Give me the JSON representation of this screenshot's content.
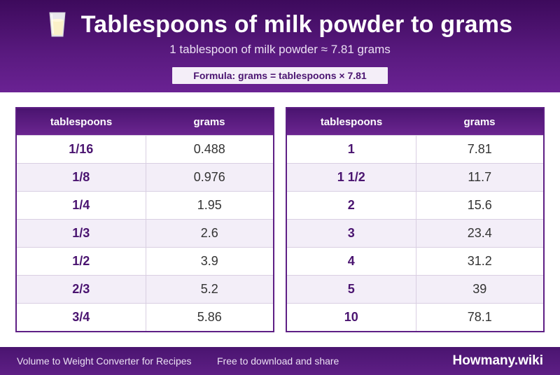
{
  "header": {
    "icon": "milk-glass-icon",
    "title": "Tablespoons of milk powder to grams",
    "subtitle": "1 tablespoon of milk powder ≈ 7.81 grams",
    "formula": "Formula: grams = tablespoons × 7.81"
  },
  "tables": {
    "columns": [
      "tablespoons",
      "grams"
    ],
    "left": [
      {
        "tbsp": "1/16",
        "grams": "0.488"
      },
      {
        "tbsp": "1/8",
        "grams": "0.976"
      },
      {
        "tbsp": "1/4",
        "grams": "1.95"
      },
      {
        "tbsp": "1/3",
        "grams": "2.6"
      },
      {
        "tbsp": "1/2",
        "grams": "3.9"
      },
      {
        "tbsp": "2/3",
        "grams": "5.2"
      },
      {
        "tbsp": "3/4",
        "grams": "5.86"
      }
    ],
    "right": [
      {
        "tbsp": "1",
        "grams": "7.81"
      },
      {
        "tbsp": "1 1/2",
        "grams": "11.7"
      },
      {
        "tbsp": "2",
        "grams": "15.6"
      },
      {
        "tbsp": "3",
        "grams": "23.4"
      },
      {
        "tbsp": "4",
        "grams": "31.2"
      },
      {
        "tbsp": "5",
        "grams": "39"
      },
      {
        "tbsp": "10",
        "grams": "78.1"
      }
    ]
  },
  "footer": {
    "left_text": "Volume to Weight Converter for Recipes",
    "middle_text": "Free to download and share",
    "brand": "Howmany.wiki"
  },
  "colors": {
    "brand_purple": "#4a1470",
    "header_gradient_light": "#6a2293",
    "alt_row": "#f3eef8"
  }
}
